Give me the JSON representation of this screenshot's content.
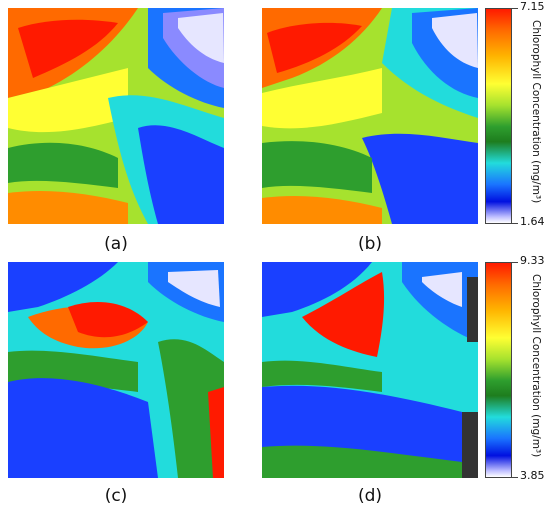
{
  "chart_data": [
    {
      "type": "heatmap",
      "panel": "(a)",
      "colorbar": "top"
    },
    {
      "type": "heatmap",
      "panel": "(b)",
      "colorbar": "top"
    },
    {
      "type": "heatmap",
      "panel": "(c)",
      "colorbar": "bottom"
    },
    {
      "type": "heatmap",
      "panel": "(d)",
      "colorbar": "bottom"
    }
  ],
  "captions": {
    "a": "(a)",
    "b": "(b)",
    "c": "(c)",
    "d": "(d)"
  },
  "colorbar_top": {
    "max": "7.15",
    "min": "1.64",
    "title": "Chlorophyll Concentration (mg/m³)"
  },
  "colorbar_bottom": {
    "max": "9.33",
    "min": "3.85",
    "title": "Chlorophyll Concentration (mg/m³)"
  },
  "colors": {
    "no_data": "#333333"
  }
}
